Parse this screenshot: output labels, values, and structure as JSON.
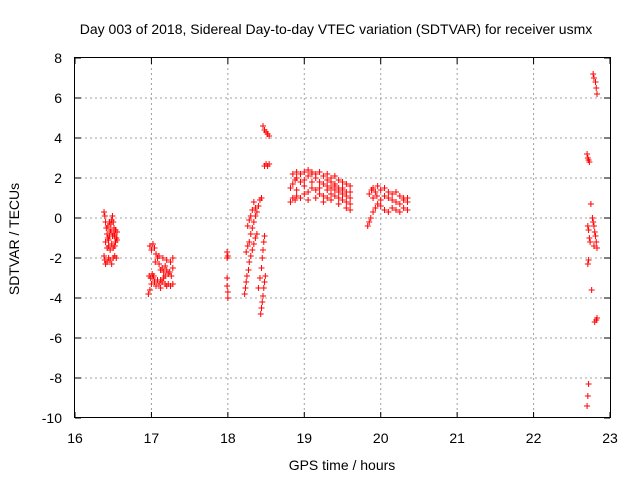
{
  "chart_data": {
    "type": "scatter",
    "title": "Day 003 of 2018, Sidereal Day-to-day VTEC variation (SDTVAR) for receiver usmx",
    "xlabel": "GPS time / hours",
    "ylabel": "SDTVAR / TECUs",
    "xlim": [
      16,
      23
    ],
    "ylim": [
      -10,
      8
    ],
    "xticks": [
      "16",
      "17",
      "18",
      "19",
      "20",
      "21",
      "22",
      "23"
    ],
    "yticks": [
      "-10",
      "-8",
      "-6",
      "-4",
      "-2",
      "0",
      "2",
      "4",
      "6",
      "8"
    ],
    "grid": true,
    "marker": "plus",
    "colors": {
      "points": "#ff0000",
      "grid": "#a0a0a0",
      "frame": "#000000"
    },
    "series": [
      {
        "points": [
          [
            16.38,
            0.3
          ],
          [
            16.39,
            0.1
          ],
          [
            16.4,
            -0.2
          ],
          [
            16.41,
            -0.5
          ],
          [
            16.42,
            -0.8
          ],
          [
            16.43,
            -1.0
          ],
          [
            16.44,
            -1.1
          ],
          [
            16.45,
            -0.9
          ],
          [
            16.46,
            -0.6
          ],
          [
            16.47,
            -0.3
          ],
          [
            16.48,
            -0.1
          ],
          [
            16.49,
            0.1
          ],
          [
            16.5,
            -0.2
          ],
          [
            16.51,
            -0.5
          ],
          [
            16.52,
            -0.9
          ],
          [
            16.53,
            -1.2
          ],
          [
            16.54,
            -1.0
          ],
          [
            16.55,
            -0.7
          ],
          [
            16.4,
            -1.2
          ],
          [
            16.42,
            -1.5
          ],
          [
            16.44,
            -1.4
          ],
          [
            16.46,
            -1.6
          ],
          [
            16.48,
            -1.3
          ],
          [
            16.5,
            -1.5
          ],
          [
            16.52,
            -1.4
          ],
          [
            16.38,
            -1.9
          ],
          [
            16.39,
            -2.1
          ],
          [
            16.4,
            -2.3
          ],
          [
            16.42,
            -2.2
          ],
          [
            16.44,
            -2.0
          ],
          [
            16.46,
            -2.1
          ],
          [
            16.48,
            -2.3
          ],
          [
            16.5,
            -2.0
          ],
          [
            16.52,
            -1.9
          ],
          [
            16.54,
            -2.0
          ],
          [
            16.43,
            -0.4
          ],
          [
            16.45,
            -0.2
          ],
          [
            16.47,
            -0.7
          ],
          [
            16.49,
            -0.9
          ],
          [
            16.51,
            -0.8
          ],
          [
            16.53,
            -0.6
          ],
          [
            16.55,
            -1.1
          ],
          [
            16.96,
            -3.8
          ],
          [
            16.98,
            -3.6
          ],
          [
            17.0,
            -3.3
          ],
          [
            17.02,
            -3.0
          ],
          [
            17.04,
            -3.2
          ],
          [
            17.06,
            -3.4
          ],
          [
            17.08,
            -3.1
          ],
          [
            17.1,
            -3.3
          ],
          [
            17.12,
            -3.5
          ],
          [
            17.14,
            -3.2
          ],
          [
            17.16,
            -3.0
          ],
          [
            17.18,
            -3.3
          ],
          [
            17.2,
            -3.4
          ],
          [
            17.22,
            -3.3
          ],
          [
            17.25,
            -3.4
          ],
          [
            17.28,
            -3.3
          ],
          [
            16.97,
            -2.9
          ],
          [
            16.99,
            -3.0
          ],
          [
            17.01,
            -2.8
          ],
          [
            17.03,
            -2.9
          ],
          [
            16.98,
            -1.4
          ],
          [
            17.0,
            -1.6
          ],
          [
            17.02,
            -1.3
          ],
          [
            17.04,
            -1.5
          ],
          [
            17.06,
            -1.8
          ],
          [
            17.08,
            -2.0
          ],
          [
            17.1,
            -2.3
          ],
          [
            17.12,
            -2.6
          ],
          [
            17.14,
            -2.5
          ],
          [
            17.16,
            -2.7
          ],
          [
            17.18,
            -2.4
          ],
          [
            17.2,
            -2.6
          ],
          [
            17.22,
            -2.8
          ],
          [
            17.24,
            -2.7
          ],
          [
            17.26,
            -2.9
          ],
          [
            17.28,
            -2.5
          ],
          [
            17.05,
            -2.2
          ],
          [
            17.1,
            -1.9
          ],
          [
            17.15,
            -2.0
          ],
          [
            17.2,
            -2.1
          ],
          [
            17.25,
            -2.2
          ],
          [
            17.28,
            -2.0
          ],
          [
            17.12,
            -3.1
          ],
          [
            17.18,
            -2.9
          ],
          [
            17.99,
            -1.7
          ],
          [
            17.99,
            -2.0
          ],
          [
            18.0,
            -1.9
          ],
          [
            17.99,
            -3.0
          ],
          [
            17.99,
            -3.4
          ],
          [
            18.0,
            -3.7
          ],
          [
            18.0,
            -4.0
          ],
          [
            18.22,
            -3.8
          ],
          [
            18.23,
            -3.5
          ],
          [
            18.24,
            -3.2
          ],
          [
            18.25,
            -2.9
          ],
          [
            18.27,
            -2.6
          ],
          [
            18.28,
            -2.2
          ],
          [
            18.3,
            -1.9
          ],
          [
            18.32,
            -1.6
          ],
          [
            18.34,
            -1.3
          ],
          [
            18.36,
            -1.0
          ],
          [
            18.38,
            -0.8
          ],
          [
            18.24,
            -1.7
          ],
          [
            18.26,
            -1.4
          ],
          [
            18.28,
            -1.2
          ],
          [
            18.3,
            -0.8
          ],
          [
            18.32,
            -0.5
          ],
          [
            18.34,
            -0.2
          ],
          [
            18.36,
            0.1
          ],
          [
            18.38,
            0.3
          ],
          [
            18.4,
            0.6
          ],
          [
            18.42,
            0.9
          ],
          [
            18.44,
            1.0
          ],
          [
            18.26,
            -0.4
          ],
          [
            18.28,
            -0.1
          ],
          [
            18.3,
            0.1
          ],
          [
            18.32,
            0.4
          ],
          [
            18.34,
            0.8
          ],
          [
            18.36,
            0.5
          ],
          [
            18.43,
            -4.8
          ],
          [
            18.44,
            -4.5
          ],
          [
            18.45,
            -4.2
          ],
          [
            18.46,
            -3.9
          ],
          [
            18.47,
            -3.5
          ],
          [
            18.48,
            -3.2
          ],
          [
            18.49,
            -2.9
          ],
          [
            18.4,
            -3.5
          ],
          [
            18.42,
            -3.0
          ],
          [
            18.44,
            -2.5
          ],
          [
            18.45,
            -2.0
          ],
          [
            18.46,
            -1.6
          ],
          [
            18.47,
            -1.2
          ],
          [
            18.48,
            -0.9
          ],
          [
            18.46,
            4.6
          ],
          [
            18.48,
            4.4
          ],
          [
            18.5,
            4.3
          ],
          [
            18.52,
            4.2
          ],
          [
            18.54,
            4.1
          ],
          [
            18.48,
            2.6
          ],
          [
            18.5,
            2.7
          ],
          [
            18.52,
            2.6
          ],
          [
            18.54,
            2.7
          ],
          [
            18.82,
            0.8
          ],
          [
            18.85,
            1.0
          ],
          [
            18.88,
            0.9
          ],
          [
            18.9,
            1.1
          ],
          [
            18.95,
            1.0
          ],
          [
            19.0,
            1.2
          ],
          [
            19.05,
            1.3
          ],
          [
            19.1,
            1.5
          ],
          [
            19.15,
            1.4
          ],
          [
            19.2,
            1.2
          ],
          [
            19.25,
            1.1
          ],
          [
            19.3,
            1.0
          ],
          [
            19.35,
            1.2
          ],
          [
            19.4,
            1.1
          ],
          [
            19.45,
            1.0
          ],
          [
            19.5,
            0.9
          ],
          [
            19.55,
            0.8
          ],
          [
            19.6,
            0.7
          ],
          [
            18.82,
            1.5
          ],
          [
            18.85,
            1.7
          ],
          [
            18.88,
            1.9
          ],
          [
            18.9,
            2.0
          ],
          [
            18.95,
            1.8
          ],
          [
            19.0,
            1.9
          ],
          [
            19.05,
            2.1
          ],
          [
            19.1,
            2.2
          ],
          [
            19.15,
            2.0
          ],
          [
            19.2,
            1.8
          ],
          [
            19.25,
            1.7
          ],
          [
            19.3,
            1.6
          ],
          [
            19.35,
            1.5
          ],
          [
            19.4,
            1.4
          ],
          [
            19.45,
            1.3
          ],
          [
            19.5,
            1.2
          ],
          [
            19.55,
            1.1
          ],
          [
            19.6,
            1.0
          ],
          [
            18.85,
            2.2
          ],
          [
            18.9,
            2.3
          ],
          [
            18.95,
            2.2
          ],
          [
            19.0,
            2.3
          ],
          [
            19.05,
            2.4
          ],
          [
            19.1,
            2.3
          ],
          [
            19.15,
            2.2
          ],
          [
            19.2,
            2.3
          ],
          [
            19.25,
            2.1
          ],
          [
            19.3,
            2.2
          ],
          [
            19.35,
            2.0
          ],
          [
            19.4,
            2.1
          ],
          [
            19.45,
            1.9
          ],
          [
            19.5,
            1.8
          ],
          [
            19.55,
            1.7
          ],
          [
            19.6,
            1.6
          ],
          [
            18.9,
            1.4
          ],
          [
            19.0,
            1.6
          ],
          [
            19.1,
            1.8
          ],
          [
            19.2,
            1.5
          ],
          [
            19.3,
            1.4
          ],
          [
            19.4,
            1.7
          ],
          [
            19.5,
            1.5
          ],
          [
            19.6,
            1.3
          ],
          [
            19.05,
            0.9
          ],
          [
            19.15,
            1.0
          ],
          [
            19.25,
            0.8
          ],
          [
            19.35,
            0.9
          ],
          [
            19.45,
            0.7
          ],
          [
            19.55,
            0.5
          ],
          [
            19.6,
            0.4
          ],
          [
            19.3,
            1.9
          ],
          [
            19.35,
            1.8
          ],
          [
            19.4,
            1.6
          ],
          [
            19.45,
            1.5
          ],
          [
            19.5,
            1.4
          ],
          [
            19.55,
            1.3
          ],
          [
            19.83,
            -0.4
          ],
          [
            19.85,
            -0.2
          ],
          [
            19.87,
            0.0
          ],
          [
            19.9,
            0.3
          ],
          [
            19.93,
            0.5
          ],
          [
            19.96,
            0.7
          ],
          [
            20.0,
            0.9
          ],
          [
            20.05,
            1.1
          ],
          [
            20.1,
            1.0
          ],
          [
            20.15,
            0.9
          ],
          [
            20.2,
            0.8
          ],
          [
            20.25,
            0.7
          ],
          [
            20.3,
            0.5
          ],
          [
            20.35,
            0.4
          ],
          [
            19.85,
            1.2
          ],
          [
            19.88,
            1.4
          ],
          [
            19.9,
            1.5
          ],
          [
            19.93,
            1.3
          ],
          [
            19.96,
            1.6
          ],
          [
            20.0,
            1.4
          ],
          [
            20.05,
            1.5
          ],
          [
            20.1,
            1.3
          ],
          [
            20.15,
            1.2
          ],
          [
            20.2,
            1.3
          ],
          [
            20.25,
            1.1
          ],
          [
            20.3,
            1.0
          ],
          [
            20.35,
            0.8
          ],
          [
            19.9,
            1.0
          ],
          [
            19.95,
            1.1
          ],
          [
            20.0,
            0.6
          ],
          [
            20.05,
            0.4
          ],
          [
            20.1,
            0.3
          ],
          [
            20.15,
            0.5
          ],
          [
            20.2,
            0.4
          ],
          [
            20.25,
            0.3
          ],
          [
            20.3,
            0.9
          ],
          [
            20.35,
            1.0
          ],
          [
            22.7,
            3.2
          ],
          [
            22.71,
            3.0
          ],
          [
            22.72,
            2.9
          ],
          [
            22.73,
            2.8
          ],
          [
            22.78,
            7.2
          ],
          [
            22.79,
            7.0
          ],
          [
            22.81,
            6.8
          ],
          [
            22.82,
            6.5
          ],
          [
            22.83,
            6.2
          ],
          [
            22.71,
            -0.4
          ],
          [
            22.72,
            -0.6
          ],
          [
            22.73,
            -1.0
          ],
          [
            22.74,
            -1.2
          ],
          [
            22.72,
            -2.1
          ],
          [
            22.71,
            -2.3
          ],
          [
            22.75,
            0.7
          ],
          [
            22.77,
            0.0
          ],
          [
            22.78,
            -0.2
          ],
          [
            22.79,
            -0.4
          ],
          [
            22.8,
            -0.7
          ],
          [
            22.81,
            -0.9
          ],
          [
            22.82,
            -1.2
          ],
          [
            22.83,
            -1.5
          ],
          [
            22.79,
            -1.4
          ],
          [
            22.76,
            -3.6
          ],
          [
            22.8,
            -5.2
          ],
          [
            22.82,
            -5.1
          ],
          [
            22.83,
            -5.0
          ],
          [
            22.72,
            -8.3
          ],
          [
            22.71,
            -8.9
          ],
          [
            22.7,
            -9.4
          ]
        ]
      }
    ]
  }
}
